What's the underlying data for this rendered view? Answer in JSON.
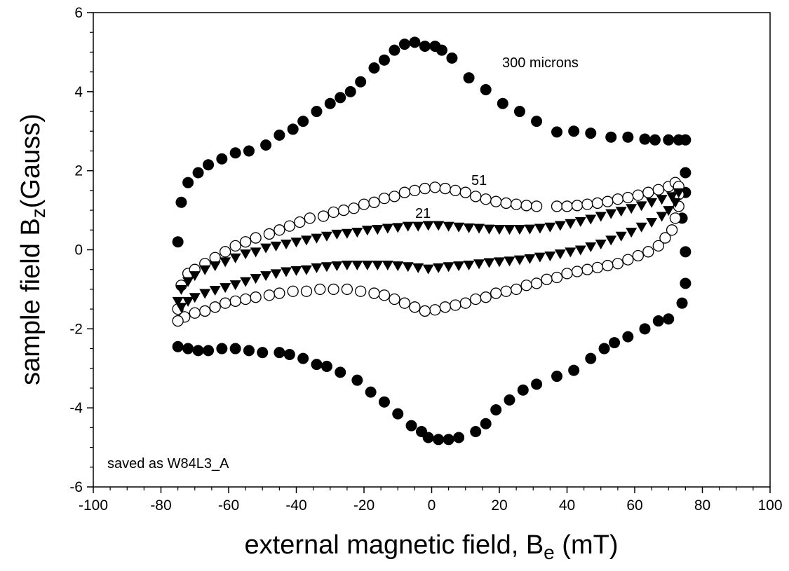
{
  "chart_data": {
    "type": "scatter",
    "xlabel": {
      "text": "external magnetic field, B",
      "sub": "e",
      "after": " (mT)"
    },
    "ylabel": {
      "text": "sample field B",
      "sub": "z",
      "after": "(Gauss)"
    },
    "xlim": [
      -100,
      100
    ],
    "xticks": [
      -100,
      -80,
      -60,
      -40,
      -20,
      0,
      20,
      40,
      60,
      80,
      100
    ],
    "ylim": [
      -6,
      6
    ],
    "yticks": [
      -6,
      -4,
      -2,
      0,
      2,
      4,
      6
    ],
    "minor_per_major": 4,
    "annotations": [
      "saved as W84L3_A"
    ],
    "series": [
      {
        "name": "300 microns",
        "marker": "filled-circle",
        "color": "#000000",
        "x": [
          -75,
          -74,
          -72,
          -69,
          -66,
          -62,
          -58,
          -54,
          -49,
          -45,
          -41,
          -38,
          -34,
          -30,
          -27,
          -24,
          -21,
          -17,
          -14,
          -11,
          -8,
          -5,
          -2,
          1,
          3,
          6,
          11,
          16,
          21,
          26,
          31,
          37,
          42,
          47,
          53,
          58,
          63,
          66,
          70,
          73,
          75,
          75,
          75,
          74,
          75,
          75,
          74,
          70,
          67,
          63,
          58,
          54,
          51,
          47,
          42,
          37,
          31,
          27,
          23,
          19,
          16,
          13,
          8,
          5,
          2,
          -1,
          -3,
          -6,
          -10,
          -14,
          -18,
          -22,
          -27,
          -31,
          -34,
          -38,
          -42,
          -45,
          -50,
          -54,
          -58,
          -62,
          -66,
          -69,
          -72,
          -75
        ],
        "values": [
          0.2,
          1.2,
          1.7,
          1.95,
          2.15,
          2.3,
          2.45,
          2.5,
          2.65,
          2.9,
          3.05,
          3.25,
          3.5,
          3.7,
          3.85,
          4.0,
          4.25,
          4.6,
          4.8,
          5.05,
          5.2,
          5.25,
          5.15,
          5.15,
          5.05,
          4.85,
          4.35,
          4.05,
          3.7,
          3.5,
          3.25,
          2.98,
          3.0,
          2.95,
          2.85,
          2.85,
          2.8,
          2.78,
          2.78,
          2.78,
          2.78,
          1.95,
          1.45,
          0.8,
          -0.05,
          -0.85,
          -1.35,
          -1.75,
          -1.8,
          -2.0,
          -2.2,
          -2.35,
          -2.5,
          -2.75,
          -3.05,
          -3.2,
          -3.4,
          -3.55,
          -3.8,
          -4.05,
          -4.4,
          -4.6,
          -4.75,
          -4.8,
          -4.8,
          -4.75,
          -4.6,
          -4.45,
          -4.15,
          -3.85,
          -3.6,
          -3.3,
          -3.1,
          -2.95,
          -2.9,
          -2.75,
          -2.65,
          -2.6,
          -2.6,
          -2.55,
          -2.5,
          -2.5,
          -2.55,
          -2.55,
          -2.5,
          -2.45
        ]
      },
      {
        "name": "51",
        "marker": "open-circle",
        "color": "#000000",
        "x": [
          -74,
          -72,
          -70,
          -67,
          -64,
          -61,
          -58,
          -55,
          -52,
          -48,
          -45,
          -42,
          -39,
          -36,
          -32,
          -29,
          -26,
          -23,
          -20,
          -17,
          -14,
          -11,
          -8,
          -5,
          -2,
          1,
          4,
          7,
          10,
          13,
          16,
          19,
          22,
          25,
          28,
          31,
          37,
          40,
          43,
          46,
          49,
          52,
          55,
          58,
          61,
          64,
          67,
          70,
          72,
          73,
          73,
          73,
          72,
          71,
          69,
          67,
          64,
          61,
          58,
          55,
          52,
          49,
          46,
          43,
          40,
          37,
          34,
          31,
          28,
          25,
          22,
          19,
          16,
          13,
          10,
          7,
          4,
          1,
          -2,
          -5,
          -8,
          -11,
          -14,
          -17,
          -21,
          -25,
          -29,
          -33,
          -37,
          -41,
          -45,
          -48,
          -52,
          -55,
          -58,
          -61,
          -64,
          -67,
          -70,
          -73,
          -75,
          -75
        ],
        "values": [
          -0.9,
          -0.6,
          -0.5,
          -0.35,
          -0.2,
          -0.05,
          0.1,
          0.2,
          0.3,
          0.4,
          0.5,
          0.6,
          0.7,
          0.8,
          0.85,
          0.95,
          1.0,
          1.05,
          1.15,
          1.2,
          1.3,
          1.35,
          1.45,
          1.5,
          1.55,
          1.58,
          1.55,
          1.5,
          1.45,
          1.35,
          1.28,
          1.22,
          1.18,
          1.15,
          1.12,
          1.1,
          1.1,
          1.1,
          1.12,
          1.15,
          1.18,
          1.22,
          1.28,
          1.32,
          1.38,
          1.45,
          1.52,
          1.6,
          1.7,
          1.6,
          1.4,
          1.1,
          0.8,
          0.5,
          0.3,
          0.1,
          -0.05,
          -0.15,
          -0.25,
          -0.35,
          -0.4,
          -0.45,
          -0.5,
          -0.55,
          -0.6,
          -0.7,
          -0.75,
          -0.85,
          -0.9,
          -1.0,
          -1.05,
          -1.1,
          -1.2,
          -1.25,
          -1.35,
          -1.4,
          -1.45,
          -1.52,
          -1.55,
          -1.45,
          -1.35,
          -1.25,
          -1.15,
          -1.1,
          -1.05,
          -1.0,
          -1.0,
          -1.0,
          -1.05,
          -1.05,
          -1.1,
          -1.15,
          -1.2,
          -1.25,
          -1.3,
          -1.35,
          -1.45,
          -1.55,
          -1.6,
          -1.7,
          -1.8,
          -1.5
        ]
      },
      {
        "name": "21",
        "marker": "filled-triangle-down",
        "color": "#000000",
        "x": [
          -75,
          -74,
          -72,
          -70,
          -67,
          -64,
          -61,
          -58,
          -55,
          -52,
          -49,
          -46,
          -43,
          -40,
          -37,
          -34,
          -31,
          -28,
          -25,
          -22,
          -19,
          -16,
          -13,
          -10,
          -7,
          -4,
          -1,
          2,
          5,
          8,
          11,
          14,
          17,
          20,
          23,
          26,
          29,
          32,
          35,
          38,
          41,
          44,
          47,
          50,
          53,
          56,
          59,
          62,
          65,
          68,
          71,
          73,
          72,
          70,
          68,
          65,
          62,
          59,
          56,
          53,
          50,
          47,
          44,
          41,
          38,
          35,
          32,
          29,
          26,
          23,
          20,
          17,
          14,
          11,
          8,
          5,
          2,
          -1,
          -4,
          -7,
          -10,
          -13,
          -16,
          -19,
          -22,
          -25,
          -28,
          -31,
          -34,
          -37,
          -40,
          -43,
          -46,
          -49,
          -52,
          -55,
          -58,
          -61,
          -64,
          -67,
          -70,
          -72,
          -74
        ],
        "values": [
          -1.3,
          -1.0,
          -0.8,
          -0.65,
          -0.5,
          -0.4,
          -0.3,
          -0.2,
          -0.1,
          -0.05,
          0.05,
          0.1,
          0.15,
          0.2,
          0.25,
          0.3,
          0.35,
          0.4,
          0.42,
          0.45,
          0.5,
          0.52,
          0.55,
          0.57,
          0.6,
          0.6,
          0.62,
          0.62,
          0.6,
          0.58,
          0.56,
          0.55,
          0.53,
          0.52,
          0.52,
          0.52,
          0.53,
          0.55,
          0.58,
          0.62,
          0.67,
          0.72,
          0.78,
          0.85,
          0.92,
          0.98,
          1.05,
          1.12,
          1.2,
          1.28,
          1.35,
          1.45,
          1.2,
          1.0,
          0.85,
          0.7,
          0.58,
          0.45,
          0.35,
          0.25,
          0.15,
          0.08,
          0.0,
          -0.05,
          -0.1,
          -0.15,
          -0.18,
          -0.22,
          -0.25,
          -0.28,
          -0.3,
          -0.32,
          -0.35,
          -0.38,
          -0.4,
          -0.42,
          -0.45,
          -0.48,
          -0.45,
          -0.42,
          -0.4,
          -0.38,
          -0.38,
          -0.38,
          -0.38,
          -0.38,
          -0.4,
          -0.42,
          -0.45,
          -0.5,
          -0.52,
          -0.55,
          -0.6,
          -0.65,
          -0.72,
          -0.8,
          -0.88,
          -0.95,
          -1.02,
          -1.1,
          -1.2,
          -1.3,
          -1.45
        ]
      }
    ]
  }
}
